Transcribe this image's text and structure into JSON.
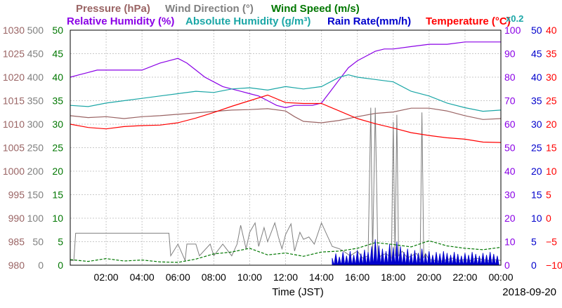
{
  "chart_data": {
    "type": "line",
    "date_label": "2018-09-20",
    "xlabel": "Time (JST)",
    "x_ticks": [
      "02:00",
      "04:00",
      "06:00",
      "08:00",
      "10:00",
      "12:00",
      "14:00",
      "16:00",
      "18:00",
      "20:00",
      "22:00",
      "00:00"
    ],
    "x_range_hours": [
      0,
      24
    ],
    "grid": true,
    "legend_rows": [
      [
        {
          "key": "pressure",
          "text": "Pressure (hPa)",
          "color": "#9a6464"
        },
        {
          "key": "wind_direction",
          "text": "Wind Direction (°)",
          "color": "#808080"
        },
        {
          "key": "wind_speed",
          "text": "Wind Speed (m/s)",
          "color": "#007700"
        }
      ],
      [
        {
          "key": "relative_humidity",
          "text": "Relative Humidity (%)",
          "color": "#8a00e6"
        },
        {
          "key": "absolute_humidity",
          "text": "Absolute Humidity (g/m³)",
          "color": "#1aa6a6"
        },
        {
          "key": "rain_rate",
          "text": "Rain Rate(mm/h)",
          "color": "#0000cc"
        },
        {
          "key": "temperature",
          "text": "Temperature (°C)",
          "color": "#ff0000"
        }
      ]
    ],
    "abs_humidity_scale": "x0.2",
    "axes": {
      "pressure": {
        "ticks": [
          "980",
          "985",
          "990",
          "995",
          "1000",
          "1005",
          "1010",
          "1015",
          "1020",
          "1025",
          "1030"
        ],
        "range": [
          980,
          1030
        ],
        "color": "#9a6464"
      },
      "wind_direction": {
        "ticks": [
          "0",
          "50",
          "100",
          "150",
          "200",
          "250",
          "300",
          "350",
          "400",
          "450",
          "500"
        ],
        "range": [
          0,
          500
        ],
        "color": "#808080"
      },
      "wind_speed": {
        "ticks": [
          "0",
          "5",
          "10",
          "15",
          "20",
          "25",
          "30",
          "35",
          "40",
          "45",
          "50"
        ],
        "range": [
          0,
          50
        ],
        "color": "#007700"
      },
      "relative_humidity": {
        "ticks": [
          "0",
          "10",
          "20",
          "30",
          "40",
          "50",
          "60",
          "70",
          "80",
          "90",
          "100"
        ],
        "range": [
          0,
          100
        ],
        "color": "#8a00e6"
      },
      "rain_rate": {
        "ticks": [
          "0",
          "5",
          "10",
          "15",
          "20",
          "25",
          "30",
          "35",
          "40",
          "45",
          "50"
        ],
        "range": [
          0,
          50
        ],
        "color": "#0000cc"
      },
      "temperature": {
        "ticks": [
          "−10",
          "−5",
          "0",
          "5",
          "10",
          "15",
          "20",
          "25",
          "30",
          "35",
          "40"
        ],
        "range": [
          -10,
          40
        ],
        "color": "#ff0000"
      }
    },
    "series": [
      {
        "name": "Pressure",
        "axis": "pressure",
        "color": "#9a6464",
        "x": [
          0,
          1,
          2,
          3,
          4,
          5,
          6,
          7,
          8,
          9,
          10,
          11,
          12,
          12.5,
          13,
          14,
          15,
          16,
          17,
          18,
          19,
          20,
          21,
          22,
          23,
          24
        ],
        "y": [
          1011.8,
          1011.4,
          1011.6,
          1011.2,
          1011.6,
          1011.8,
          1012.1,
          1012.4,
          1012.7,
          1013.0,
          1013.1,
          1013.3,
          1012.8,
          1011.6,
          1010.6,
          1010.3,
          1010.8,
          1011.6,
          1012.3,
          1012.6,
          1013.4,
          1013.4,
          1012.8,
          1011.8,
          1011.0,
          1011.2
        ]
      },
      {
        "name": "Wind Direction",
        "axis": "wind_direction",
        "color": "#808080",
        "x": [
          0,
          0.2,
          0.3,
          5.5,
          5.6,
          6.0,
          6.4,
          6.5,
          7.0,
          7.2,
          7.8,
          8.0,
          8.5,
          9.0,
          9.3,
          9.5,
          9.8,
          10.0,
          10.3,
          10.5,
          10.8,
          11.0,
          11.4,
          11.6,
          11.8,
          12.0,
          12.3,
          12.5,
          12.8,
          13.0,
          13.3,
          13.6,
          14.0,
          14.3,
          14.6,
          15.0,
          15.3,
          15.6,
          16.0,
          16.3,
          16.6,
          16.75,
          16.85,
          17.0,
          17.15,
          17.3,
          17.6,
          17.9,
          18.0,
          18.1,
          18.2,
          18.3,
          18.5,
          18.8,
          19.0,
          19.3,
          19.5,
          19.6,
          19.7,
          19.8,
          20.0,
          20.3,
          20.6,
          21.0,
          21.3,
          21.6,
          22.0,
          22.3,
          22.6,
          23.0,
          23.3,
          23.6,
          24
        ],
        "y": [
          10,
          10,
          68,
          68,
          20,
          45,
          10,
          45,
          45,
          20,
          45,
          20,
          45,
          20,
          45,
          85,
          35,
          70,
          90,
          40,
          80,
          50,
          90,
          60,
          35,
          65,
          88,
          30,
          70,
          55,
          60,
          45,
          90,
          65,
          40,
          35,
          28,
          20,
          30,
          15,
          20,
          335,
          20,
          335,
          10,
          20,
          25,
          15,
          305,
          20,
          320,
          20,
          30,
          15,
          20,
          25,
          10,
          325,
          15,
          25,
          12,
          10,
          8,
          12,
          15,
          10,
          12,
          10,
          15,
          12,
          10,
          12,
          10
        ]
      },
      {
        "name": "Wind Speed",
        "axis": "wind_speed",
        "color": "#007700",
        "x": [
          0,
          1,
          2,
          3,
          4,
          5,
          6,
          7,
          8,
          9,
          10,
          11,
          12,
          13,
          14,
          15,
          16,
          17,
          18,
          19,
          20,
          21,
          22,
          23,
          24
        ],
        "y": [
          1.2,
          0.8,
          1.4,
          0.9,
          1.1,
          0.7,
          0.6,
          1.3,
          2.4,
          2.8,
          3.6,
          2.2,
          2.6,
          1.9,
          2.8,
          3.0,
          3.6,
          4.8,
          4.4,
          3.9,
          5.2,
          4.1,
          3.6,
          3.3,
          3.8
        ]
      },
      {
        "name": "Relative Humidity",
        "axis": "relative_humidity",
        "color": "#8a00e6",
        "x": [
          0,
          0.5,
          1,
          1.5,
          2,
          3,
          4,
          5,
          5.5,
          6,
          6.5,
          7,
          7.5,
          8,
          8.5,
          9,
          9.5,
          10,
          10.5,
          11,
          11.5,
          12,
          12.5,
          13,
          13.5,
          14,
          14.5,
          15,
          15.5,
          16,
          16.5,
          17,
          17.5,
          18,
          19,
          20,
          21,
          22,
          23,
          24
        ],
        "y": [
          80,
          81,
          82,
          83,
          83,
          83,
          83,
          86,
          87,
          88,
          86,
          83,
          80,
          78,
          76,
          75,
          74,
          73,
          72,
          70,
          68,
          67,
          68,
          68,
          68,
          69,
          74,
          79,
          84,
          87,
          89,
          91,
          92,
          92,
          93,
          94,
          94,
          95,
          95,
          95
        ]
      },
      {
        "name": "Absolute Humidity",
        "axis": "absolute_humidity",
        "color": "#1aa6a6",
        "x": [
          0,
          1,
          2,
          3,
          4,
          5,
          6,
          7,
          8,
          9,
          10,
          11,
          12,
          13,
          14,
          15,
          15.5,
          16,
          17,
          18,
          19,
          20,
          21,
          22,
          23,
          24
        ],
        "y": [
          68,
          67.5,
          69,
          70,
          71,
          72,
          73,
          74,
          73.5,
          75,
          75.5,
          74.5,
          76,
          75,
          76,
          80,
          81,
          80,
          79,
          78,
          74,
          72,
          69,
          67,
          65.5,
          66
        ]
      },
      {
        "name": "Temperature",
        "axis": "temperature",
        "color": "#ff0000",
        "x": [
          0,
          1,
          2,
          3,
          4,
          5,
          6,
          7,
          8,
          9,
          10,
          11,
          12,
          13,
          14,
          15,
          16,
          17,
          18,
          19,
          20,
          21,
          22,
          23,
          24
        ],
        "y": [
          20,
          19.3,
          19.0,
          19.5,
          19.7,
          19.8,
          20.3,
          21.3,
          22.5,
          23.8,
          25.0,
          26.2,
          24.6,
          24.4,
          24.4,
          22.8,
          21.2,
          20.1,
          19.2,
          18.2,
          17.6,
          17.1,
          16.8,
          16.2,
          16.1
        ]
      },
      {
        "name": "Rain Rate",
        "axis": "rain_rate",
        "color": "#0000cc",
        "x": [
          14.6,
          14.8,
          15.0,
          15.2,
          15.4,
          15.6,
          15.8,
          16.0,
          16.2,
          16.4,
          16.6,
          16.8,
          17.0,
          17.2,
          17.4,
          17.6,
          17.8,
          18.0,
          18.2,
          18.4,
          18.6,
          18.8,
          19.0,
          19.2,
          19.4,
          19.6,
          19.8,
          20.0,
          20.2,
          20.4,
          20.6,
          20.8,
          21.0,
          21.2,
          21.4,
          21.6,
          21.8,
          22.0,
          22.2,
          22.4,
          22.6,
          22.8,
          23.0,
          23.2,
          23.4,
          23.6,
          23.8
        ],
        "y": [
          1.5,
          2.5,
          1.8,
          2.8,
          2.0,
          3.0,
          2.2,
          3.2,
          2.5,
          3.3,
          2.8,
          4.0,
          5.5,
          4.2,
          3.5,
          3.0,
          4.5,
          3.8,
          5.0,
          4.0,
          2.8,
          3.5,
          2.5,
          3.2,
          2.6,
          3.5,
          2.4,
          3.0,
          2.2,
          2.8,
          2.5,
          3.0,
          2.6,
          2.2,
          2.8,
          2.4,
          2.0,
          2.6,
          2.2,
          2.8,
          2.4,
          2.0,
          2.6,
          2.2,
          2.8,
          2.4,
          2.0
        ]
      }
    ]
  }
}
